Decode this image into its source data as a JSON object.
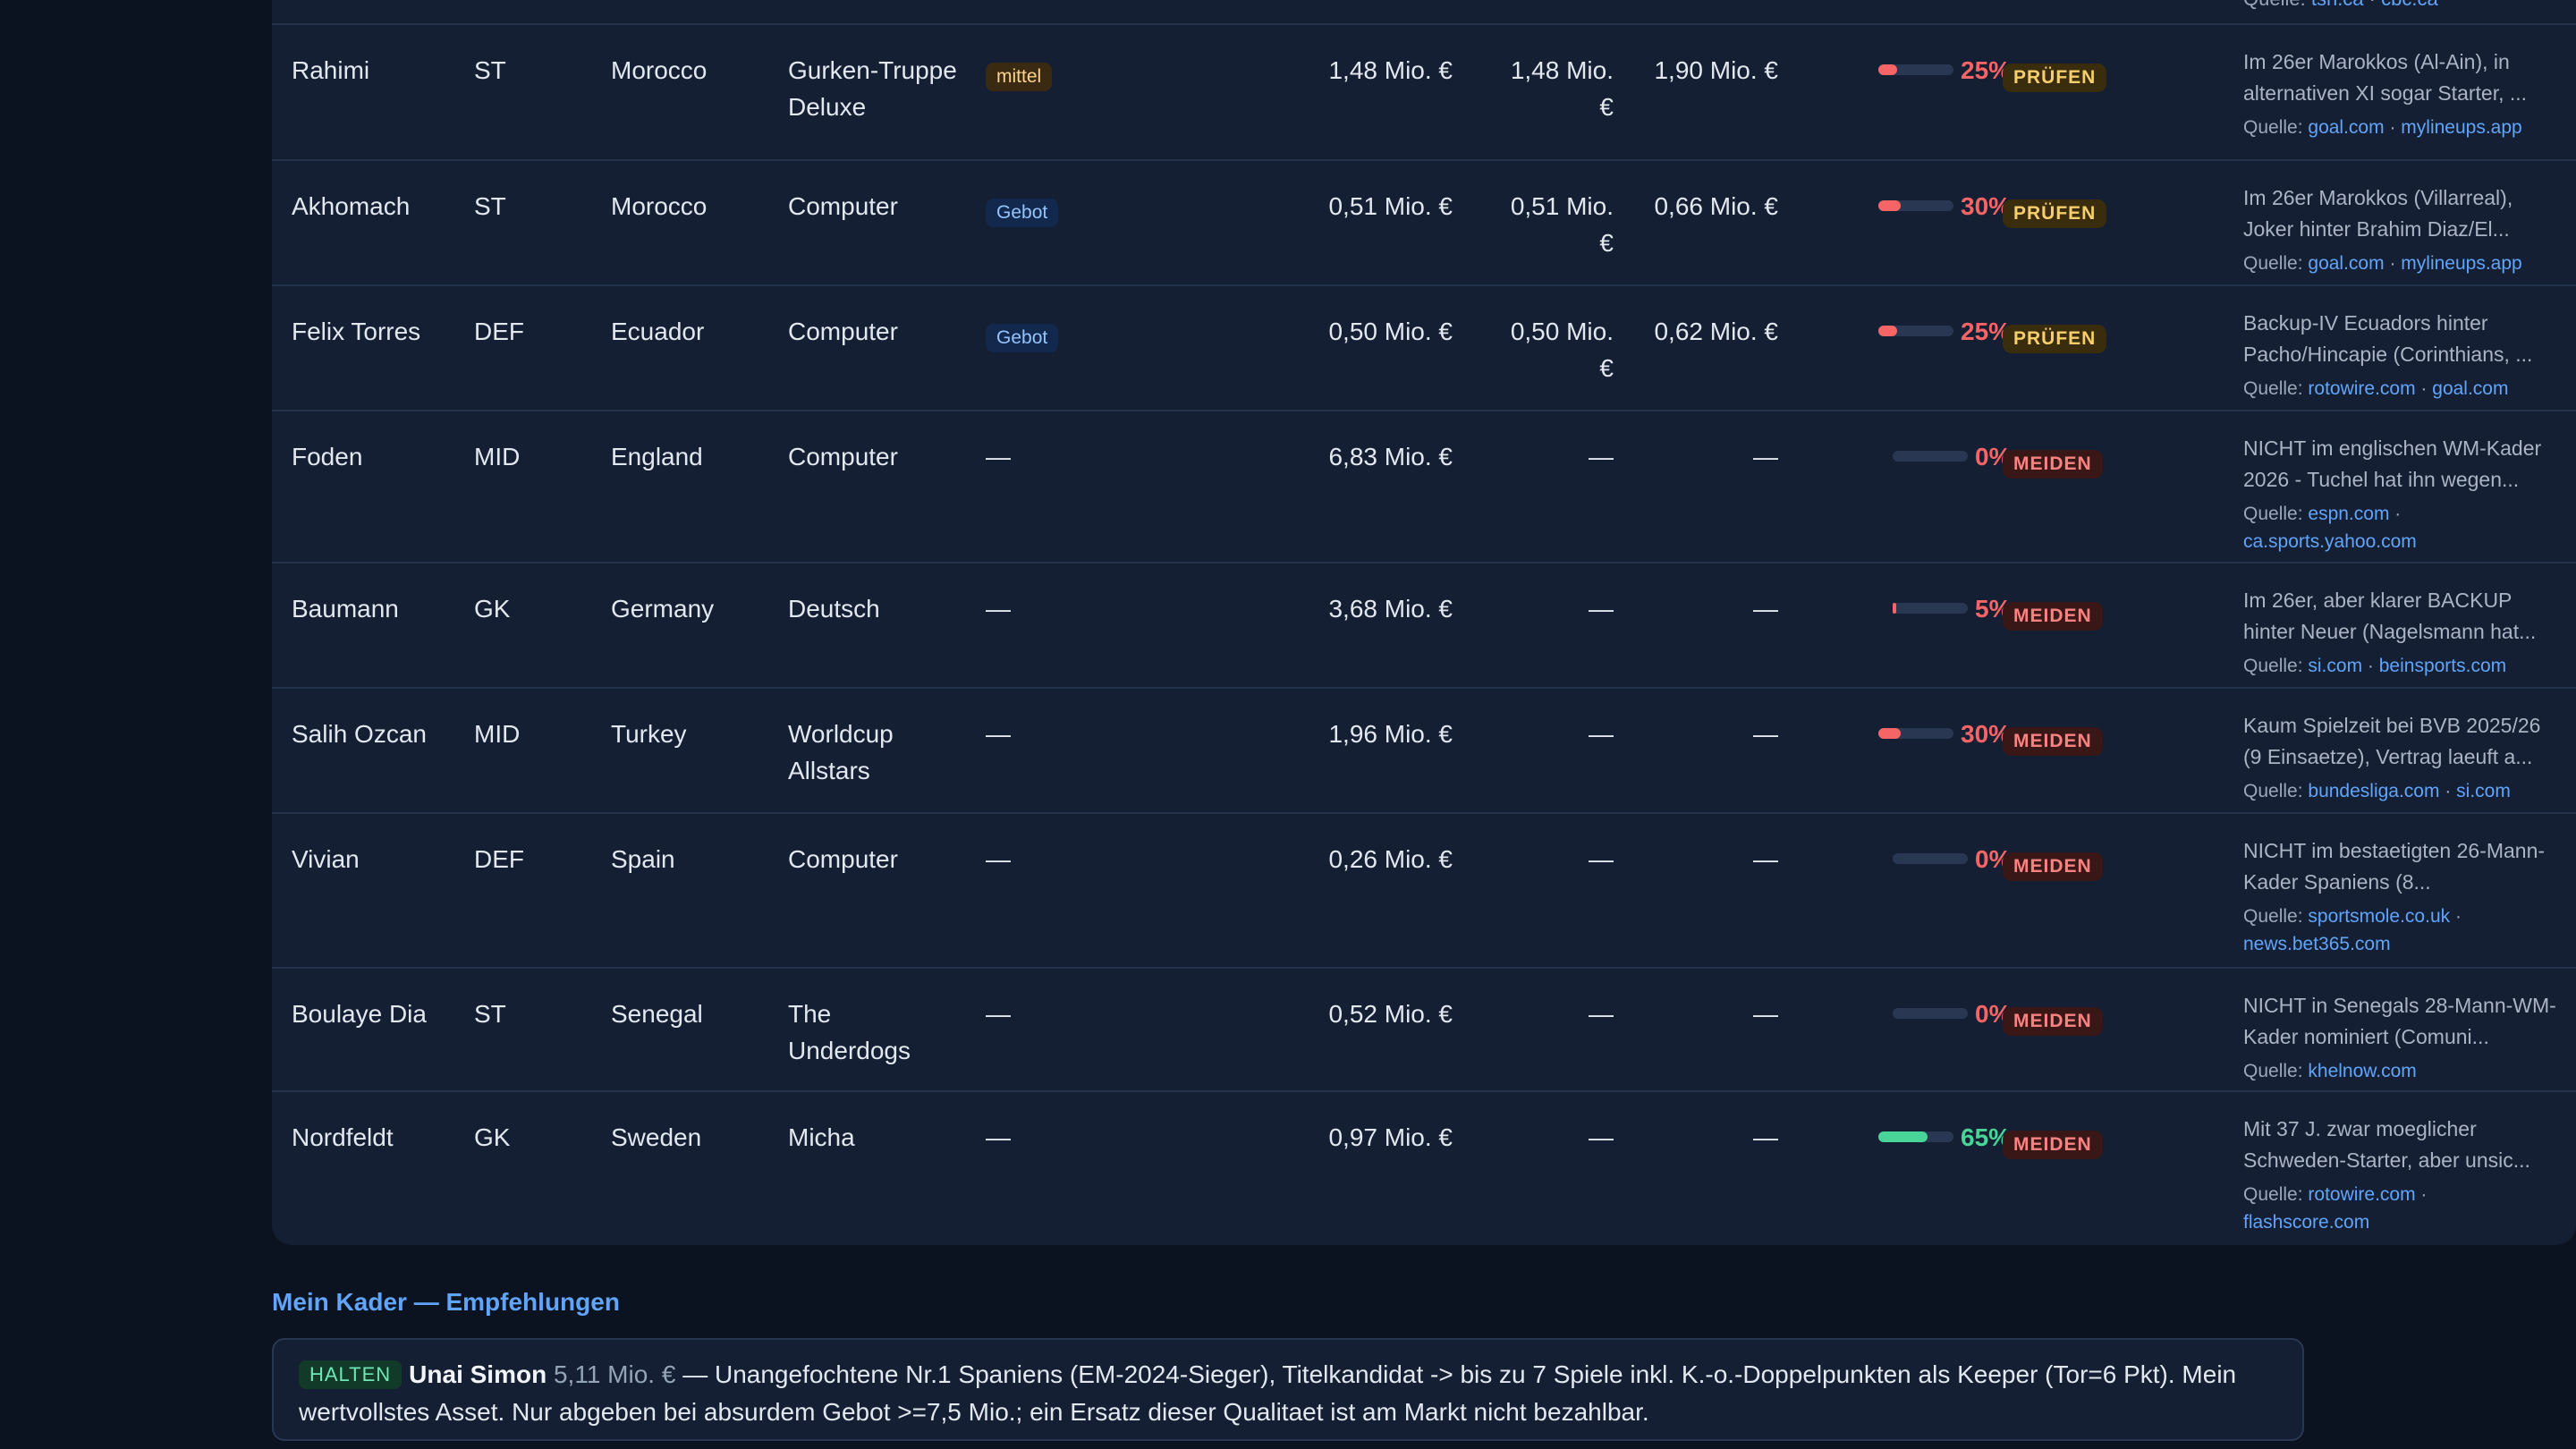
{
  "top_strip": {
    "label": "Quelle:",
    "sources": [
      "tsn.ca",
      "cbc.ca"
    ]
  },
  "players": [
    {
      "name": "Rahimi",
      "pos": "ST",
      "country": "Morocco",
      "team": "Gurken-Truppe Deluxe",
      "bid": "mittel",
      "bid_type": "mittel",
      "v1": "1,48 Mio. €",
      "v2": "1,48 Mio. €",
      "v3": "1,90 Mio. €",
      "pct": "25%",
      "pct_value": 25,
      "pct_color": "#f56565",
      "verdict": "PRÜFEN",
      "verdict_type": "pruefen",
      "note": "Im 26er Marokkos (Al-Ain), in alternativen XI sogar Starter, ...",
      "src_label": "Quelle:",
      "sources": [
        "goal.com",
        "mylineups.app"
      ]
    },
    {
      "name": "Akhomach",
      "pos": "ST",
      "country": "Morocco",
      "team": "Computer",
      "bid": "Gebot",
      "bid_type": "gebot",
      "v1": "0,51 Mio. €",
      "v2": "0,51 Mio. €",
      "v3": "0,66 Mio. €",
      "pct": "30%",
      "pct_value": 30,
      "pct_color": "#f56565",
      "verdict": "PRÜFEN",
      "verdict_type": "pruefen",
      "note": "Im 26er Marokkos (Villarreal), Joker hinter Brahim Diaz/El...",
      "src_label": "Quelle:",
      "sources": [
        "goal.com",
        "mylineups.app"
      ]
    },
    {
      "name": "Felix Torres",
      "pos": "DEF",
      "country": "Ecuador",
      "team": "Computer",
      "bid": "Gebot",
      "bid_type": "gebot",
      "v1": "0,50 Mio. €",
      "v2": "0,50 Mio. €",
      "v3": "0,62 Mio. €",
      "pct": "25%",
      "pct_value": 25,
      "pct_color": "#f56565",
      "verdict": "PRÜFEN",
      "verdict_type": "pruefen",
      "note": "Backup-IV Ecuadors hinter Pacho/Hincapie (Corinthians, ...",
      "src_label": "Quelle:",
      "sources": [
        "rotowire.com",
        "goal.com"
      ]
    },
    {
      "name": "Foden",
      "pos": "MID",
      "country": "England",
      "team": "Computer",
      "bid": "—",
      "bid_type": "none",
      "v1": "6,83 Mio. €",
      "v2": "—",
      "v3": "—",
      "pct": "0%",
      "pct_value": 0,
      "pct_color": "#f56565",
      "verdict": "MEIDEN",
      "verdict_type": "meiden",
      "note": "NICHT im englischen WM-Kader 2026 - Tuchel hat ihn wegen...",
      "src_label": "Quelle:",
      "sources": [
        "espn.com",
        "ca.sports.yahoo.com"
      ]
    },
    {
      "name": "Baumann",
      "pos": "GK",
      "country": "Germany",
      "team": "Deutsch",
      "bid": "—",
      "bid_type": "none",
      "v1": "3,68 Mio. €",
      "v2": "—",
      "v3": "—",
      "pct": "5%",
      "pct_value": 5,
      "pct_color": "#f56565",
      "verdict": "MEIDEN",
      "verdict_type": "meiden",
      "note": "Im 26er, aber klarer BACKUP hinter Neuer (Nagelsmann hat...",
      "src_label": "Quelle:",
      "sources": [
        "si.com",
        "beinsports.com"
      ]
    },
    {
      "name": "Salih Ozcan",
      "pos": "MID",
      "country": "Turkey",
      "team": "Worldcup Allstars",
      "bid": "—",
      "bid_type": "none",
      "v1": "1,96 Mio. €",
      "v2": "—",
      "v3": "—",
      "pct": "30%",
      "pct_value": 30,
      "pct_color": "#f56565",
      "verdict": "MEIDEN",
      "verdict_type": "meiden",
      "note": "Kaum Spielzeit bei BVB 2025/26 (9 Einsaetze), Vertrag laeuft a...",
      "src_label": "Quelle:",
      "sources": [
        "bundesliga.com",
        "si.com"
      ]
    },
    {
      "name": "Vivian",
      "pos": "DEF",
      "country": "Spain",
      "team": "Computer",
      "bid": "—",
      "bid_type": "none",
      "v1": "0,26 Mio. €",
      "v2": "—",
      "v3": "—",
      "pct": "0%",
      "pct_value": 0,
      "pct_color": "#f56565",
      "verdict": "MEIDEN",
      "verdict_type": "meiden",
      "note": "NICHT im bestaetigten 26-Mann-Kader Spaniens (8...",
      "src_label": "Quelle:",
      "sources": [
        "sportsmole.co.uk",
        "news.bet365.com"
      ]
    },
    {
      "name": "Boulaye Dia",
      "pos": "ST",
      "country": "Senegal",
      "team": "The Underdogs",
      "bid": "—",
      "bid_type": "none",
      "v1": "0,52 Mio. €",
      "v2": "—",
      "v3": "—",
      "pct": "0%",
      "pct_value": 0,
      "pct_color": "#f56565",
      "verdict": "MEIDEN",
      "verdict_type": "meiden",
      "note": "NICHT in Senegals 28-Mann-WM-Kader nominiert (Comuni...",
      "src_label": "Quelle:",
      "sources": [
        "khelnow.com"
      ]
    },
    {
      "name": "Nordfeldt",
      "pos": "GK",
      "country": "Sweden",
      "team": "Micha",
      "bid": "—",
      "bid_type": "none",
      "v1": "0,97 Mio. €",
      "v2": "—",
      "v3": "—",
      "pct": "65%",
      "pct_value": 65,
      "pct_color": "#48d597",
      "verdict": "MEIDEN",
      "verdict_type": "meiden",
      "note": "Mit 37 J. zwar moeglicher Schweden-Starter, aber unsic...",
      "src_label": "Quelle:",
      "sources": [
        "rotowire.com",
        "flashscore.com"
      ]
    }
  ],
  "recommendations": {
    "title": "Mein Kader — Empfehlungen",
    "items": [
      {
        "badge": "HALTEN",
        "name": "Unai Simon",
        "value": "5,11 Mio. €",
        "text": "— Unangefochtene Nr.1 Spaniens (EM-2024-Sieger), Titelkandidat -> bis zu 7 Spiele inkl. K.-o.-Doppelpunkten als Keeper (Tor=6 Pkt). Mein wertvollstes Asset. Nur abgeben bei absurdem Gebot >=7,5 Mio.; ein Ersatz dieser Qualitaet ist am Markt nicht bezahlbar."
      }
    ]
  },
  "colors": {
    "accent": "#60a5fa",
    "danger": "#f56565",
    "success": "#48d597"
  }
}
